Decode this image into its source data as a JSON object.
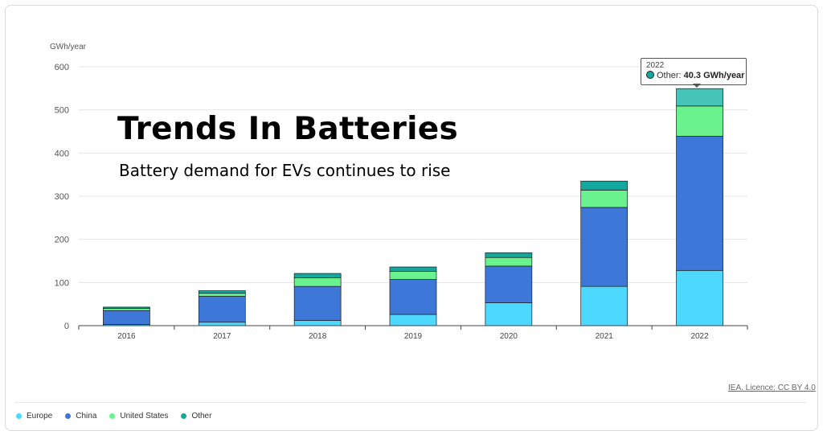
{
  "overlay": {
    "title": "Trends In Batteries",
    "subtitle": "Battery demand for EVs continues to rise"
  },
  "tooltip": {
    "year": "2022",
    "series": "Other:",
    "value": "40.3 GWh/year",
    "color": "#12a89d"
  },
  "source_link": "IEA. Licence: CC BY 4.0",
  "legend": [
    {
      "label": "Europe",
      "color": "#4dd8ff"
    },
    {
      "label": "China",
      "color": "#3d78d8"
    },
    {
      "label": "United States",
      "color": "#6af28e"
    },
    {
      "label": "Other",
      "color": "#12a89d"
    }
  ],
  "chart_data": {
    "type": "bar",
    "stacked": true,
    "title": "",
    "xlabel": "",
    "ylabel": "GWh/year",
    "ylim": [
      0,
      600
    ],
    "yticks": [
      0,
      100,
      200,
      300,
      400,
      500,
      600
    ],
    "grid": true,
    "legend_position": "bottom-left",
    "categories": [
      "2016",
      "2017",
      "2018",
      "2019",
      "2020",
      "2021",
      "2022"
    ],
    "series": [
      {
        "name": "Europe",
        "color": "#4dd8ff",
        "values": [
          3,
          8,
          12,
          26,
          53,
          91,
          128
        ]
      },
      {
        "name": "China",
        "color": "#3d78d8",
        "values": [
          32,
          60,
          79,
          81,
          85,
          183,
          311
        ]
      },
      {
        "name": "United States",
        "color": "#6af28e",
        "values": [
          5,
          7,
          20,
          19,
          20,
          40,
          70
        ]
      },
      {
        "name": "Other",
        "color": "#12a89d",
        "values": [
          3,
          6,
          10,
          10,
          11,
          21,
          40.3
        ]
      }
    ],
    "highlight": {
      "category": "2022",
      "series": "Other",
      "color": "#45c4b7"
    }
  }
}
